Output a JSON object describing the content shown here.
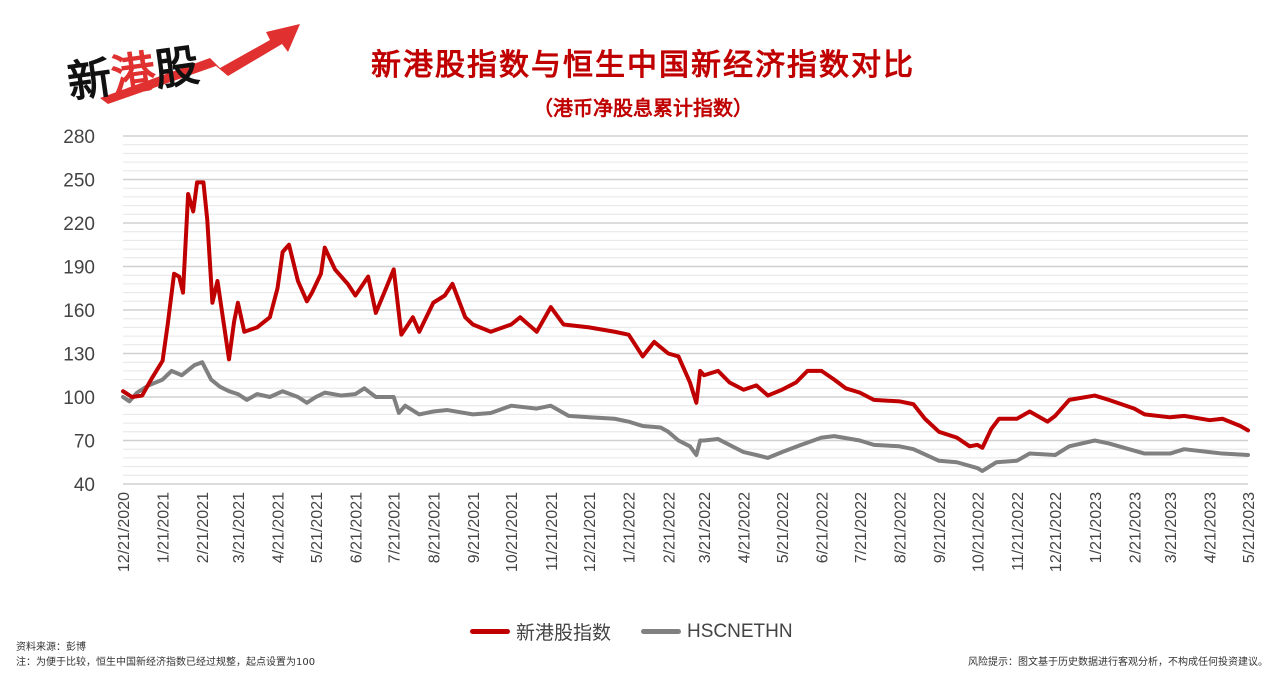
{
  "logo": {
    "text": "新港股"
  },
  "chart_data": {
    "type": "line",
    "title": "新港股指数与恒生中国新经济指数对比",
    "subtitle": "（港币净股息累计指数）",
    "xlabel": "",
    "ylabel": "",
    "ylim": [
      40,
      280
    ],
    "yticks": [
      40,
      70,
      100,
      130,
      160,
      190,
      220,
      250,
      280
    ],
    "xlim": [
      "2020-12-21",
      "2023-05-21"
    ],
    "xticks": [
      "12/21/2020",
      "1/21/2021",
      "2/21/2021",
      "3/21/2021",
      "4/21/2021",
      "5/21/2021",
      "6/21/2021",
      "7/21/2021",
      "8/21/2021",
      "9/21/2021",
      "10/21/2021",
      "11/21/2021",
      "12/21/2021",
      "1/21/2022",
      "2/21/2022",
      "3/21/2022",
      "4/21/2022",
      "5/21/2022",
      "6/21/2022",
      "7/21/2022",
      "8/21/2022",
      "9/21/2022",
      "10/21/2022",
      "11/21/2022",
      "12/21/2022",
      "1/21/2023",
      "2/21/2023",
      "3/21/2023",
      "4/21/2023",
      "5/21/2023"
    ],
    "grid": true,
    "legend_position": "bottom",
    "series": [
      {
        "name": "新港股指数",
        "color": "#c00000",
        "points": [
          [
            "2020-12-21",
            104
          ],
          [
            "2020-12-28",
            100
          ],
          [
            "2021-01-05",
            101
          ],
          [
            "2021-01-12",
            112
          ],
          [
            "2021-01-21",
            125
          ],
          [
            "2021-01-25",
            150
          ],
          [
            "2021-01-30",
            185
          ],
          [
            "2021-02-03",
            183
          ],
          [
            "2021-02-06",
            172
          ],
          [
            "2021-02-10",
            240
          ],
          [
            "2021-02-14",
            228
          ],
          [
            "2021-02-17",
            248
          ],
          [
            "2021-02-22",
            248
          ],
          [
            "2021-02-25",
            222
          ],
          [
            "2021-03-01",
            165
          ],
          [
            "2021-03-05",
            180
          ],
          [
            "2021-03-10",
            150
          ],
          [
            "2021-03-14",
            126
          ],
          [
            "2021-03-18",
            152
          ],
          [
            "2021-03-21",
            165
          ],
          [
            "2021-03-26",
            145
          ],
          [
            "2021-04-05",
            148
          ],
          [
            "2021-04-15",
            155
          ],
          [
            "2021-04-21",
            175
          ],
          [
            "2021-04-25",
            200
          ],
          [
            "2021-04-30",
            205
          ],
          [
            "2021-05-07",
            180
          ],
          [
            "2021-05-14",
            166
          ],
          [
            "2021-05-18",
            172
          ],
          [
            "2021-05-25",
            185
          ],
          [
            "2021-05-28",
            203
          ],
          [
            "2021-06-05",
            188
          ],
          [
            "2021-06-15",
            178
          ],
          [
            "2021-06-21",
            170
          ],
          [
            "2021-07-01",
            183
          ],
          [
            "2021-07-07",
            158
          ],
          [
            "2021-07-15",
            175
          ],
          [
            "2021-07-21",
            188
          ],
          [
            "2021-07-27",
            143
          ],
          [
            "2021-08-05",
            155
          ],
          [
            "2021-08-10",
            145
          ],
          [
            "2021-08-21",
            165
          ],
          [
            "2021-08-30",
            170
          ],
          [
            "2021-09-05",
            178
          ],
          [
            "2021-09-15",
            155
          ],
          [
            "2021-09-21",
            150
          ],
          [
            "2021-10-05",
            145
          ],
          [
            "2021-10-21",
            150
          ],
          [
            "2021-10-28",
            155
          ],
          [
            "2021-11-10",
            145
          ],
          [
            "2021-11-21",
            162
          ],
          [
            "2021-12-01",
            150
          ],
          [
            "2021-12-21",
            148
          ],
          [
            "2022-01-10",
            145
          ],
          [
            "2022-01-21",
            143
          ],
          [
            "2022-02-01",
            128
          ],
          [
            "2022-02-10",
            138
          ],
          [
            "2022-02-21",
            130
          ],
          [
            "2022-03-01",
            128
          ],
          [
            "2022-03-10",
            110
          ],
          [
            "2022-03-15",
            96
          ],
          [
            "2022-03-18",
            118
          ],
          [
            "2022-03-21",
            115
          ],
          [
            "2022-04-01",
            118
          ],
          [
            "2022-04-10",
            110
          ],
          [
            "2022-04-21",
            105
          ],
          [
            "2022-05-01",
            108
          ],
          [
            "2022-05-10",
            101
          ],
          [
            "2022-05-21",
            105
          ],
          [
            "2022-06-01",
            110
          ],
          [
            "2022-06-10",
            118
          ],
          [
            "2022-06-21",
            118
          ],
          [
            "2022-07-01",
            112
          ],
          [
            "2022-07-10",
            106
          ],
          [
            "2022-07-21",
            103
          ],
          [
            "2022-08-01",
            98
          ],
          [
            "2022-08-21",
            97
          ],
          [
            "2022-09-01",
            95
          ],
          [
            "2022-09-10",
            85
          ],
          [
            "2022-09-21",
            76
          ],
          [
            "2022-10-05",
            72
          ],
          [
            "2022-10-15",
            66
          ],
          [
            "2022-10-21",
            67
          ],
          [
            "2022-10-25",
            65
          ],
          [
            "2022-11-01",
            78
          ],
          [
            "2022-11-07",
            85
          ],
          [
            "2022-11-21",
            85
          ],
          [
            "2022-12-01",
            90
          ],
          [
            "2022-12-15",
            83
          ],
          [
            "2022-12-21",
            87
          ],
          [
            "2023-01-01",
            98
          ],
          [
            "2023-01-21",
            101
          ],
          [
            "2023-02-01",
            98
          ],
          [
            "2023-02-21",
            92
          ],
          [
            "2023-03-01",
            88
          ],
          [
            "2023-03-21",
            86
          ],
          [
            "2023-04-01",
            87
          ],
          [
            "2023-04-21",
            84
          ],
          [
            "2023-05-01",
            85
          ],
          [
            "2023-05-15",
            80
          ],
          [
            "2023-05-21",
            77
          ]
        ]
      },
      {
        "name": "HSCNETHN",
        "color": "#808080",
        "points": [
          [
            "2020-12-21",
            100
          ],
          [
            "2020-12-26",
            97
          ],
          [
            "2021-01-01",
            103
          ],
          [
            "2021-01-10",
            108
          ],
          [
            "2021-01-21",
            112
          ],
          [
            "2021-01-28",
            118
          ],
          [
            "2021-02-05",
            115
          ],
          [
            "2021-02-15",
            122
          ],
          [
            "2021-02-21",
            124
          ],
          [
            "2021-02-28",
            112
          ],
          [
            "2021-03-07",
            107
          ],
          [
            "2021-03-14",
            104
          ],
          [
            "2021-03-21",
            102
          ],
          [
            "2021-03-28",
            98
          ],
          [
            "2021-04-05",
            102
          ],
          [
            "2021-04-15",
            100
          ],
          [
            "2021-04-25",
            104
          ],
          [
            "2021-05-07",
            100
          ],
          [
            "2021-05-14",
            96
          ],
          [
            "2021-05-21",
            100
          ],
          [
            "2021-05-28",
            103
          ],
          [
            "2021-06-10",
            101
          ],
          [
            "2021-06-21",
            102
          ],
          [
            "2021-06-28",
            106
          ],
          [
            "2021-07-07",
            100
          ],
          [
            "2021-07-21",
            100
          ],
          [
            "2021-07-25",
            89
          ],
          [
            "2021-07-30",
            94
          ],
          [
            "2021-08-10",
            88
          ],
          [
            "2021-08-21",
            90
          ],
          [
            "2021-09-01",
            91
          ],
          [
            "2021-09-21",
            88
          ],
          [
            "2021-10-05",
            89
          ],
          [
            "2021-10-21",
            94
          ],
          [
            "2021-11-10",
            92
          ],
          [
            "2021-11-21",
            94
          ],
          [
            "2021-12-05",
            87
          ],
          [
            "2021-12-21",
            86
          ],
          [
            "2022-01-10",
            85
          ],
          [
            "2022-01-21",
            83
          ],
          [
            "2022-02-01",
            80
          ],
          [
            "2022-02-15",
            79
          ],
          [
            "2022-02-21",
            76
          ],
          [
            "2022-03-01",
            70
          ],
          [
            "2022-03-10",
            66
          ],
          [
            "2022-03-15",
            60
          ],
          [
            "2022-03-18",
            70
          ],
          [
            "2022-03-21",
            70
          ],
          [
            "2022-04-01",
            71
          ],
          [
            "2022-04-21",
            62
          ],
          [
            "2022-05-01",
            60
          ],
          [
            "2022-05-10",
            58
          ],
          [
            "2022-05-21",
            62
          ],
          [
            "2022-06-05",
            67
          ],
          [
            "2022-06-21",
            72
          ],
          [
            "2022-07-01",
            73
          ],
          [
            "2022-07-21",
            70
          ],
          [
            "2022-08-01",
            67
          ],
          [
            "2022-08-21",
            66
          ],
          [
            "2022-09-01",
            64
          ],
          [
            "2022-09-21",
            56
          ],
          [
            "2022-10-05",
            55
          ],
          [
            "2022-10-21",
            51
          ],
          [
            "2022-10-25",
            49
          ],
          [
            "2022-11-05",
            55
          ],
          [
            "2022-11-21",
            56
          ],
          [
            "2022-12-01",
            61
          ],
          [
            "2022-12-21",
            60
          ],
          [
            "2023-01-01",
            66
          ],
          [
            "2023-01-21",
            70
          ],
          [
            "2023-02-01",
            68
          ],
          [
            "2023-02-21",
            63
          ],
          [
            "2023-03-01",
            61
          ],
          [
            "2023-03-21",
            61
          ],
          [
            "2023-04-01",
            64
          ],
          [
            "2023-04-21",
            62
          ],
          [
            "2023-05-01",
            61
          ],
          [
            "2023-05-21",
            60
          ]
        ]
      }
    ]
  },
  "footer": {
    "source": "资料来源：彭博",
    "note": "注：为便于比较，恒生中国新经济指数已经过规整，起点设置为100",
    "risk": "风险提示：图文基于历史数据进行客观分析，不构成任何投资建议。"
  }
}
